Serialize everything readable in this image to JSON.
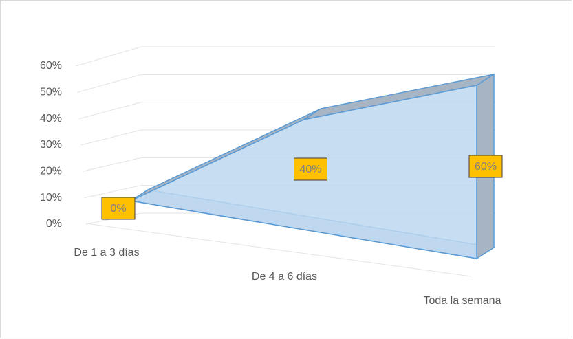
{
  "chart_data": {
    "type": "area3d",
    "categories": [
      "De 1 a 3 días",
      "De 4 a 6 días",
      "Toda la semana"
    ],
    "values": [
      0,
      40,
      60
    ],
    "value_labels": [
      "0%",
      "40%",
      "60%"
    ],
    "color": "#bdd7ee",
    "ylim": [
      0,
      60
    ],
    "yticks": [
      {
        "value": 0,
        "label": "0%"
      },
      {
        "value": 10,
        "label": "10%"
      },
      {
        "value": 20,
        "label": "20%"
      },
      {
        "value": 30,
        "label": "30%"
      },
      {
        "value": 40,
        "label": "40%"
      },
      {
        "value": 50,
        "label": "50%"
      },
      {
        "value": 60,
        "label": "60%"
      }
    ],
    "grid": true
  }
}
